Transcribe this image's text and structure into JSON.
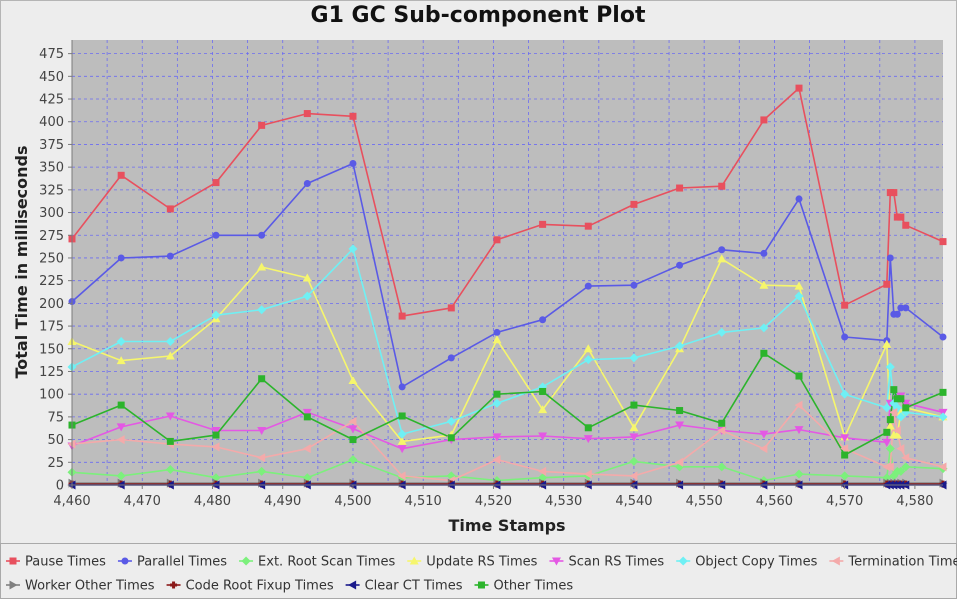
{
  "chart_data": {
    "type": "line",
    "title": "G1 GC Sub-component Plot",
    "xlabel": "Time Stamps",
    "ylabel": "Total Time in milliseconds",
    "xlim": [
      4460,
      4584
    ],
    "ylim": [
      0,
      490
    ],
    "x_ticks": [
      4460,
      4470,
      4480,
      4490,
      4500,
      4510,
      4520,
      4530,
      4540,
      4550,
      4560,
      4570,
      4580
    ],
    "x_tick_labels": [
      "4,460",
      "4,470",
      "4,480",
      "4,490",
      "4,500",
      "4,510",
      "4,520",
      "4,530",
      "4,540",
      "4,550",
      "4,560",
      "4,570",
      "4,580"
    ],
    "y_ticks": [
      0,
      25,
      50,
      75,
      100,
      125,
      150,
      175,
      200,
      225,
      250,
      275,
      300,
      325,
      350,
      375,
      400,
      425,
      450,
      475
    ],
    "y_tick_labels": [
      "0",
      "25",
      "50",
      "75",
      "100",
      "125",
      "150",
      "175",
      "200",
      "225",
      "250",
      "275",
      "300",
      "325",
      "350",
      "375",
      "400",
      "425",
      "450",
      "475"
    ],
    "grid": true,
    "legend_position": "bottom",
    "x": [
      4460,
      4467,
      4474,
      4480.5,
      4487,
      4493.5,
      4500,
      4507,
      4514,
      4520.5,
      4527,
      4533.5,
      4540,
      4546.5,
      4552.5,
      4558.5,
      4563.5,
      4570,
      4576,
      4576.5,
      4577,
      4577.5,
      4578,
      4578.7,
      4584
    ],
    "series": [
      {
        "name": "Pause Times",
        "color": "#e8505e",
        "marker": "square",
        "values": [
          271,
          341,
          304,
          333,
          396,
          409,
          406,
          186,
          195,
          270,
          287,
          285,
          309,
          327,
          329,
          402,
          437,
          198,
          221,
          322,
          322,
          295,
          295,
          286,
          268
        ]
      },
      {
        "name": "Parallel Times",
        "color": "#5a5ae6",
        "marker": "circle",
        "values": [
          202,
          250,
          252,
          275,
          275,
          332,
          354,
          108,
          140,
          168,
          182,
          219,
          220,
          242,
          259,
          255,
          315,
          163,
          159,
          250,
          188,
          188,
          195,
          195,
          163
        ]
      },
      {
        "name": "Ext. Root Scan Times",
        "color": "#7cf07c",
        "marker": "diamond",
        "values": [
          14,
          10,
          17,
          8,
          15,
          8,
          28,
          8,
          10,
          5,
          8,
          10,
          26,
          20,
          20,
          5,
          12,
          10,
          8,
          40,
          10,
          15,
          15,
          20,
          18
        ]
      },
      {
        "name": "Update RS Times",
        "color": "#f6f66c",
        "marker": "triangle-up",
        "values": [
          158,
          137,
          142,
          183,
          240,
          228,
          115,
          48,
          55,
          160,
          83,
          150,
          63,
          150,
          249,
          220,
          219,
          53,
          155,
          65,
          55,
          55,
          80,
          85,
          75
        ]
      },
      {
        "name": "Scan RS Times",
        "color": "#e458e4",
        "marker": "triangle-down",
        "values": [
          43,
          64,
          76,
          60,
          60,
          80,
          62,
          40,
          50,
          53,
          54,
          51,
          53,
          66,
          60,
          56,
          61,
          52,
          47,
          90,
          90,
          95,
          98,
          90,
          80
        ]
      },
      {
        "name": "Object Copy Times",
        "color": "#6ff0f4",
        "marker": "diamond",
        "values": [
          130,
          158,
          158,
          187,
          193,
          208,
          260,
          56,
          70,
          90,
          108,
          138,
          140,
          153,
          168,
          173,
          208,
          100,
          85,
          130,
          90,
          85,
          75,
          80,
          75
        ]
      },
      {
        "name": "Termination Times",
        "color": "#f4aaaa",
        "marker": "triangle-left",
        "values": [
          45,
          50,
          45,
          42,
          30,
          40,
          70,
          10,
          5,
          28,
          15,
          12,
          10,
          25,
          60,
          40,
          88,
          40,
          20,
          20,
          80,
          60,
          40,
          30,
          20
        ]
      },
      {
        "name": "Worker Other Times",
        "color": "#808080",
        "marker": "triangle-right",
        "values": [
          2,
          2,
          2,
          2,
          2,
          2,
          2,
          2,
          2,
          2,
          2,
          2,
          2,
          2,
          2,
          2,
          2,
          2,
          2,
          2,
          2,
          2,
          2,
          2,
          2
        ]
      },
      {
        "name": "Code Root Fixup Times",
        "color": "#8b1a1a",
        "marker": "cross",
        "values": [
          1,
          1,
          1,
          1,
          1,
          1,
          1,
          1,
          1,
          1,
          1,
          1,
          1,
          1,
          1,
          1,
          1,
          1,
          1,
          1,
          1,
          1,
          1,
          1,
          1
        ]
      },
      {
        "name": "Clear CT Times",
        "color": "#1a1a8b",
        "marker": "triangle-left",
        "values": [
          0,
          0,
          0,
          0,
          0,
          0,
          0,
          0,
          0,
          0,
          0,
          0,
          0,
          0,
          0,
          0,
          0,
          0,
          0,
          0,
          0,
          0,
          0,
          0,
          0
        ]
      },
      {
        "name": "Other Times",
        "color": "#2cb42c",
        "marker": "square",
        "values": [
          66,
          88,
          48,
          55,
          117,
          75,
          50,
          76,
          52,
          100,
          103,
          63,
          88,
          82,
          68,
          145,
          120,
          33,
          58,
          72,
          105,
          95,
          95,
          85,
          102
        ]
      }
    ]
  }
}
